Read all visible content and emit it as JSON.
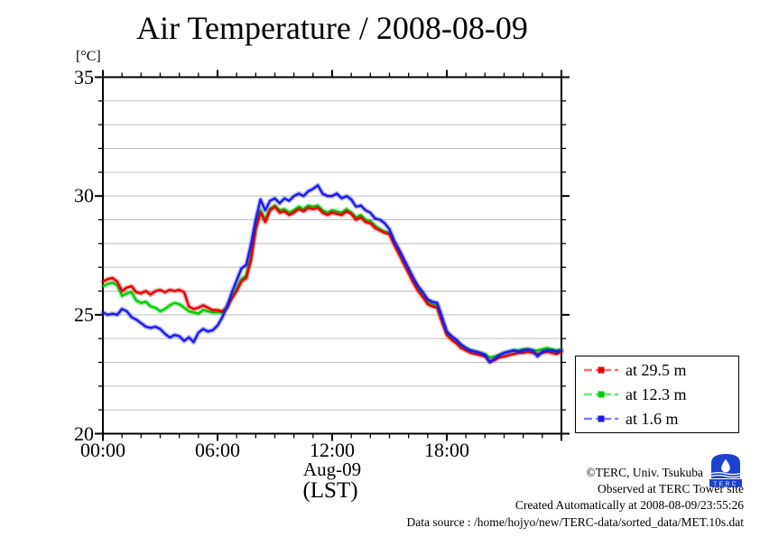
{
  "page": {
    "background": "#ffffff"
  },
  "chart_data": {
    "type": "line",
    "title": "Air Temperature / 2008-08-09",
    "y_unit_label": "[°C]",
    "x_axis": {
      "label_line1": "Aug-09",
      "label_line2": "(LST)",
      "range_hours": [
        0,
        24
      ],
      "major_tick_hours": [
        0,
        6,
        12,
        18,
        24
      ],
      "major_tick_labels": [
        "00:00",
        "06:00",
        "12:00",
        "18:00"
      ],
      "minor_tick_step_hours": 1
    },
    "y_axis": {
      "range": [
        20,
        35
      ],
      "major_ticks": [
        20,
        25,
        30,
        35
      ],
      "minor_tick_step": 1
    },
    "grid": {
      "horizontal": true,
      "vertical": false,
      "step": 1,
      "color": "#bdbdbd"
    },
    "legend_position": "outside-right-bottom",
    "x_hours": {
      "start": 0,
      "step": 0.25,
      "unit": "hours"
    },
    "series": [
      {
        "name": "at 29.5 m",
        "color": "#e60000",
        "values": [
          26.4,
          26.5,
          26.55,
          26.4,
          26.0,
          26.15,
          26.2,
          25.95,
          25.9,
          26.0,
          25.85,
          26.0,
          26.05,
          25.95,
          26.05,
          26.0,
          26.05,
          25.95,
          25.35,
          25.25,
          25.3,
          25.4,
          25.3,
          25.2,
          25.2,
          25.15,
          25.3,
          25.7,
          26.0,
          26.4,
          26.55,
          27.3,
          28.6,
          29.3,
          28.9,
          29.4,
          29.55,
          29.3,
          29.35,
          29.2,
          29.3,
          29.45,
          29.35,
          29.5,
          29.45,
          29.5,
          29.3,
          29.2,
          29.3,
          29.25,
          29.2,
          29.35,
          29.25,
          29.0,
          29.1,
          28.9,
          28.85,
          28.65,
          28.55,
          28.45,
          28.4,
          27.95,
          27.55,
          27.15,
          26.75,
          26.35,
          26.0,
          25.75,
          25.45,
          25.35,
          25.3,
          24.7,
          24.15,
          23.95,
          23.8,
          23.6,
          23.5,
          23.4,
          23.35,
          23.3,
          23.25,
          23.05,
          23.1,
          23.2,
          23.25,
          23.3,
          23.35,
          23.4,
          23.4,
          23.45,
          23.4,
          23.35,
          23.4,
          23.45,
          23.4,
          23.35,
          23.45
        ]
      },
      {
        "name": "at 12.3 m",
        "color": "#00cc00",
        "values": [
          26.2,
          26.3,
          26.35,
          26.25,
          25.8,
          25.9,
          25.95,
          25.6,
          25.5,
          25.55,
          25.35,
          25.3,
          25.15,
          25.25,
          25.4,
          25.5,
          25.45,
          25.3,
          25.15,
          25.1,
          25.05,
          25.2,
          25.15,
          25.1,
          25.1,
          25.1,
          25.35,
          25.75,
          26.1,
          26.5,
          26.65,
          27.45,
          28.7,
          29.4,
          29.0,
          29.45,
          29.6,
          29.4,
          29.45,
          29.3,
          29.4,
          29.55,
          29.45,
          29.6,
          29.55,
          29.6,
          29.4,
          29.3,
          29.4,
          29.35,
          29.3,
          29.45,
          29.3,
          29.1,
          29.2,
          29.0,
          28.95,
          28.75,
          28.6,
          28.5,
          28.45,
          28.05,
          27.65,
          27.25,
          26.85,
          26.45,
          26.1,
          25.85,
          25.55,
          25.45,
          25.4,
          24.8,
          24.25,
          24.05,
          23.9,
          23.7,
          23.6,
          23.5,
          23.45,
          23.4,
          23.35,
          23.2,
          23.25,
          23.3,
          23.4,
          23.45,
          23.5,
          23.5,
          23.55,
          23.55,
          23.5,
          23.5,
          23.55,
          23.6,
          23.55,
          23.5,
          23.55
        ]
      },
      {
        "name": "at 1.6 m",
        "color": "#1a1aee",
        "values": [
          25.1,
          25.0,
          25.05,
          25.0,
          25.25,
          25.15,
          24.9,
          24.8,
          24.65,
          24.5,
          24.45,
          24.5,
          24.4,
          24.2,
          24.05,
          24.15,
          24.1,
          23.9,
          24.05,
          23.85,
          24.25,
          24.4,
          24.3,
          24.35,
          24.55,
          24.9,
          25.35,
          25.95,
          26.45,
          26.95,
          27.1,
          27.95,
          29.0,
          29.85,
          29.4,
          29.8,
          29.9,
          29.7,
          29.9,
          29.8,
          30.0,
          30.1,
          30.0,
          30.2,
          30.3,
          30.45,
          30.1,
          30.0,
          30.0,
          30.1,
          29.9,
          30.0,
          29.85,
          29.55,
          29.6,
          29.4,
          29.3,
          29.05,
          29.0,
          28.85,
          28.6,
          28.1,
          27.75,
          27.35,
          26.95,
          26.55,
          26.2,
          25.95,
          25.65,
          25.55,
          25.5,
          24.9,
          24.3,
          24.1,
          23.95,
          23.75,
          23.6,
          23.5,
          23.45,
          23.4,
          23.3,
          23.0,
          23.15,
          23.3,
          23.4,
          23.45,
          23.5,
          23.45,
          23.5,
          23.55,
          23.5,
          23.25,
          23.45,
          23.5,
          23.5,
          23.45,
          23.5
        ]
      }
    ]
  },
  "footer": {
    "copyright": "©TERC, Univ. Tsukuba",
    "observed": "Observed at TERC Tower site",
    "created": "Created Automatically at 2008-08-09/23:55:26",
    "datasource": "Data source : /home/hojyo/new/TERC-data/sorted_data/MET.10s.dat",
    "logo_text": "TERC",
    "logo_color": "#1c43cf"
  }
}
